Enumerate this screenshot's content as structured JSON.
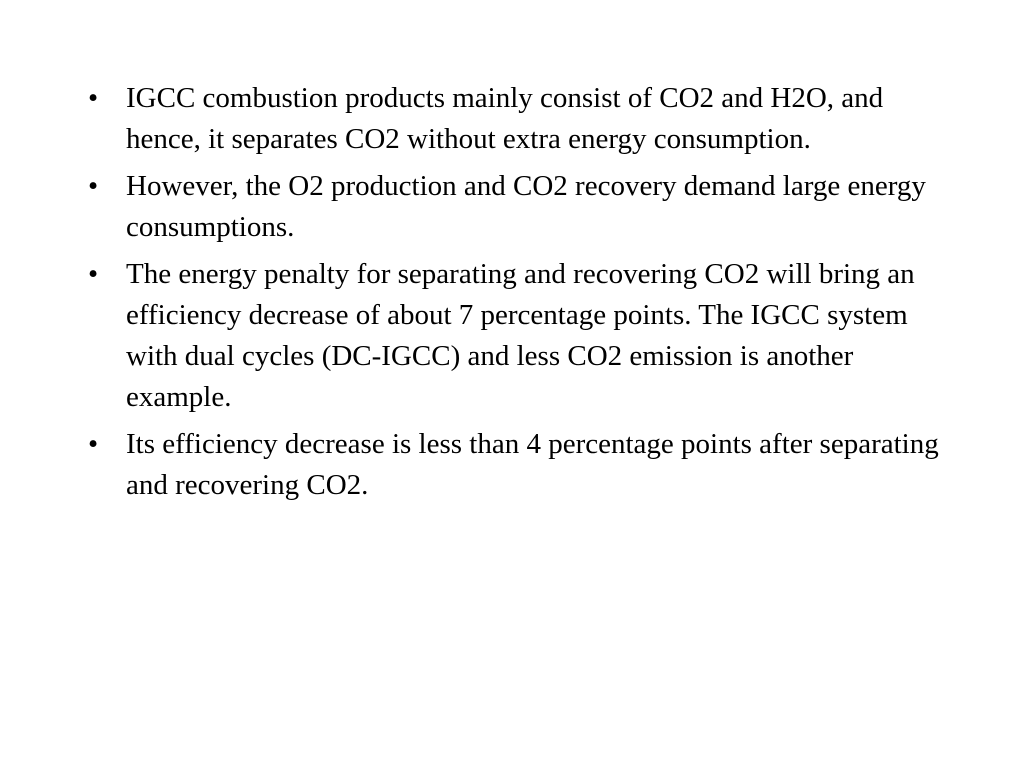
{
  "slide": {
    "bullet_symbol": "•",
    "bullets": [
      "IGCC combustion products mainly consist of CO2 and H2O, and hence, it separates CO2 without extra energy consumption.",
      "However, the O2 production and CO2 recovery demand large energy consumptions.",
      "The energy penalty for separating and recovering CO2 will bring an efficiency decrease of about 7 percentage points. The IGCC system with dual cycles (DC-IGCC) and less CO2 emission is another example.",
      "Its efficiency decrease is less than 4 percentage points after separating and recovering CO2."
    ]
  }
}
